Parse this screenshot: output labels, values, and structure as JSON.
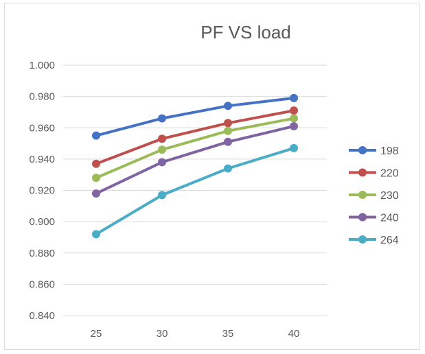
{
  "chart_data": {
    "type": "line",
    "title": "PF VS load",
    "xlabel": "",
    "ylabel": "",
    "categories": [
      "25",
      "30",
      "35",
      "40"
    ],
    "ylim": [
      0.84,
      1.0
    ],
    "yticks": [
      "0.840",
      "0.860",
      "0.880",
      "0.900",
      "0.920",
      "0.940",
      "0.960",
      "0.980",
      "1.000"
    ],
    "grid": true,
    "legend_position": "right",
    "series": [
      {
        "name": "198",
        "color": "#4472C4",
        "values": [
          0.955,
          0.966,
          0.974,
          0.979
        ]
      },
      {
        "name": "220",
        "color": "#C0504D",
        "values": [
          0.937,
          0.953,
          0.963,
          0.971
        ]
      },
      {
        "name": "230",
        "color": "#9BBB59",
        "values": [
          0.928,
          0.946,
          0.958,
          0.966
        ]
      },
      {
        "name": "240",
        "color": "#8064A2",
        "values": [
          0.918,
          0.938,
          0.951,
          0.961
        ]
      },
      {
        "name": "264",
        "color": "#4BACC6",
        "values": [
          0.892,
          0.917,
          0.934,
          0.947
        ]
      }
    ]
  }
}
